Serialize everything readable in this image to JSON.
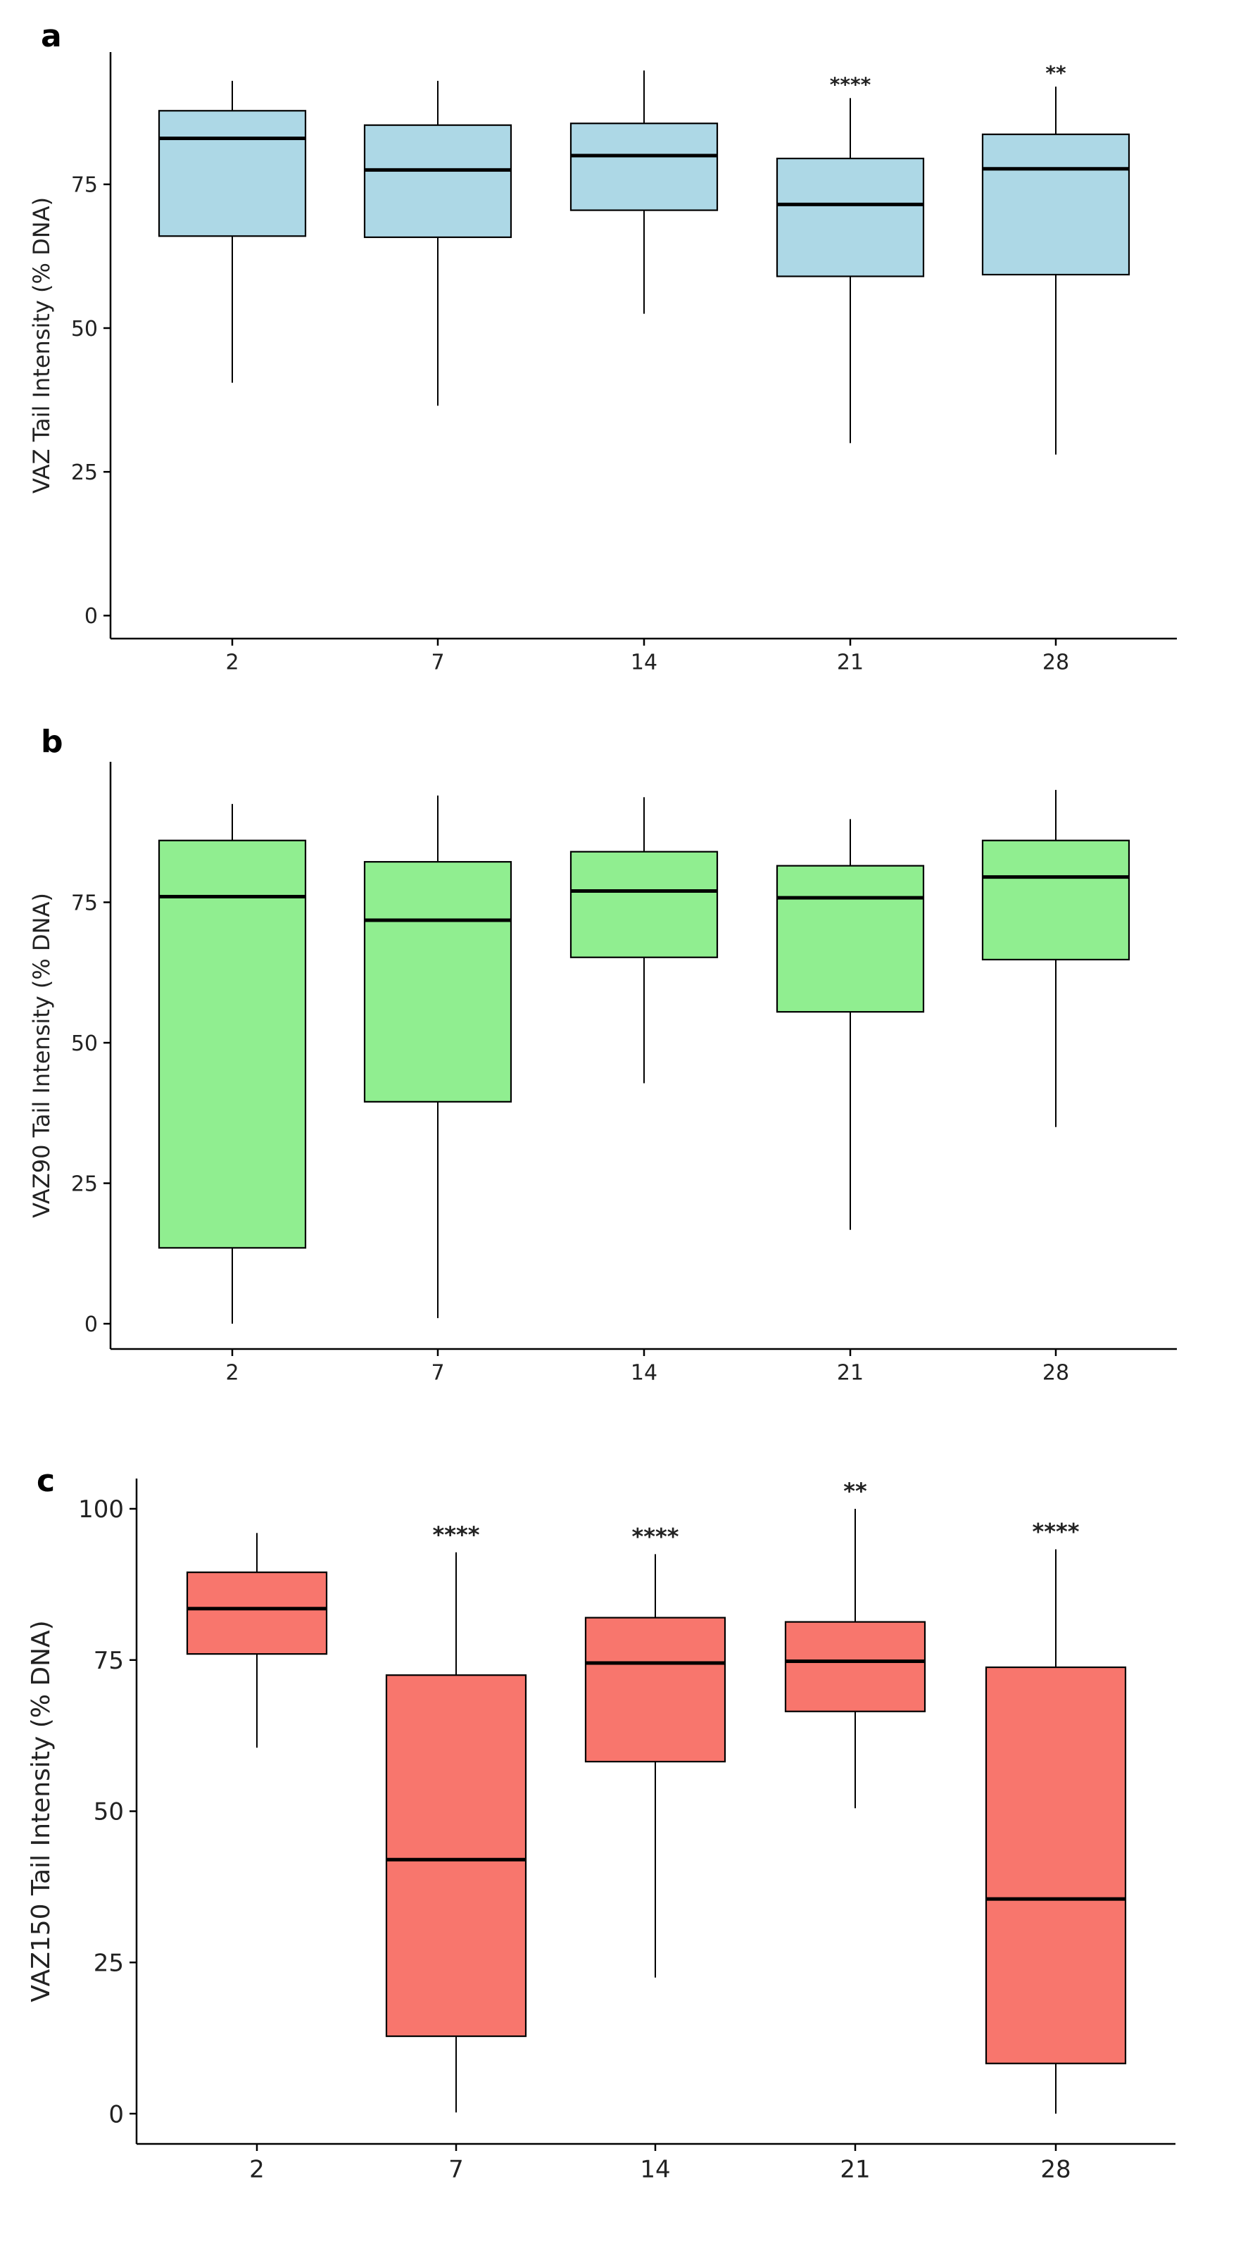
{
  "chart_data": [
    {
      "type": "boxplot",
      "panel_label": "a",
      "ylabel": "VAZ Tail Intensity (% DNA)",
      "categories": [
        "2",
        "7",
        "14",
        "21",
        "28"
      ],
      "yticks": [
        "0",
        "25",
        "50",
        "75"
      ],
      "ytick_values": [
        0,
        25,
        50,
        75
      ],
      "ylim": [
        -4,
        98
      ],
      "fill": "#add8e6",
      "boxes": [
        {
          "min": 40.5,
          "q1": 66.0,
          "median": 83.0,
          "q3": 87.8,
          "max": 93.0,
          "annotation": ""
        },
        {
          "min": 36.5,
          "q1": 65.8,
          "median": 77.5,
          "q3": 85.3,
          "max": 93.0,
          "annotation": ""
        },
        {
          "min": 52.5,
          "q1": 70.5,
          "median": 80.0,
          "q3": 85.6,
          "max": 94.8,
          "annotation": ""
        },
        {
          "min": 30.0,
          "q1": 59.0,
          "median": 71.5,
          "q3": 79.5,
          "max": 90.0,
          "annotation": "****"
        },
        {
          "min": 28.0,
          "q1": 59.3,
          "median": 77.7,
          "q3": 83.7,
          "max": 92.0,
          "annotation": "**"
        }
      ]
    },
    {
      "type": "boxplot",
      "panel_label": "b",
      "ylabel": "VAZ90 Tail Intensity (% DNA)",
      "categories": [
        "2",
        "7",
        "14",
        "21",
        "28"
      ],
      "yticks": [
        "0",
        "25",
        "50",
        "75"
      ],
      "ytick_values": [
        0,
        25,
        50,
        75
      ],
      "ylim": [
        -4.5,
        100
      ],
      "fill": "#90ee90",
      "boxes": [
        {
          "min": 0.0,
          "q1": 13.5,
          "median": 76.0,
          "q3": 86.0,
          "max": 92.5,
          "annotation": ""
        },
        {
          "min": 1.0,
          "q1": 39.5,
          "median": 71.8,
          "q3": 82.2,
          "max": 94.0,
          "annotation": ""
        },
        {
          "min": 42.8,
          "q1": 65.2,
          "median": 77.0,
          "q3": 84.0,
          "max": 93.7,
          "annotation": ""
        },
        {
          "min": 16.7,
          "q1": 55.5,
          "median": 75.8,
          "q3": 81.5,
          "max": 89.8,
          "annotation": ""
        },
        {
          "min": 35.0,
          "q1": 64.8,
          "median": 79.5,
          "q3": 86.0,
          "max": 95.0,
          "annotation": ""
        }
      ]
    },
    {
      "type": "boxplot",
      "panel_label": "c",
      "ylabel": "VAZ150 Tail Intensity (% DNA)",
      "categories": [
        "2",
        "7",
        "14",
        "21",
        "28"
      ],
      "yticks": [
        "0",
        "25",
        "50",
        "75",
        "100"
      ],
      "ytick_values": [
        0,
        25,
        50,
        75,
        100
      ],
      "ylim": [
        -5,
        105
      ],
      "fill": "#f8766d",
      "boxes": [
        {
          "min": 60.5,
          "q1": 76.0,
          "median": 83.5,
          "q3": 89.5,
          "max": 96.0,
          "annotation": ""
        },
        {
          "min": 0.2,
          "q1": 12.8,
          "median": 42.0,
          "q3": 72.5,
          "max": 92.8,
          "annotation": "****"
        },
        {
          "min": 22.5,
          "q1": 58.2,
          "median": 74.5,
          "q3": 82.0,
          "max": 92.5,
          "annotation": "****"
        },
        {
          "min": 50.5,
          "q1": 66.5,
          "median": 74.8,
          "q3": 81.3,
          "max": 100.0,
          "annotation": "**"
        },
        {
          "min": 0.0,
          "q1": 8.3,
          "median": 35.5,
          "q3": 73.8,
          "max": 93.3,
          "annotation": "****"
        }
      ]
    }
  ]
}
